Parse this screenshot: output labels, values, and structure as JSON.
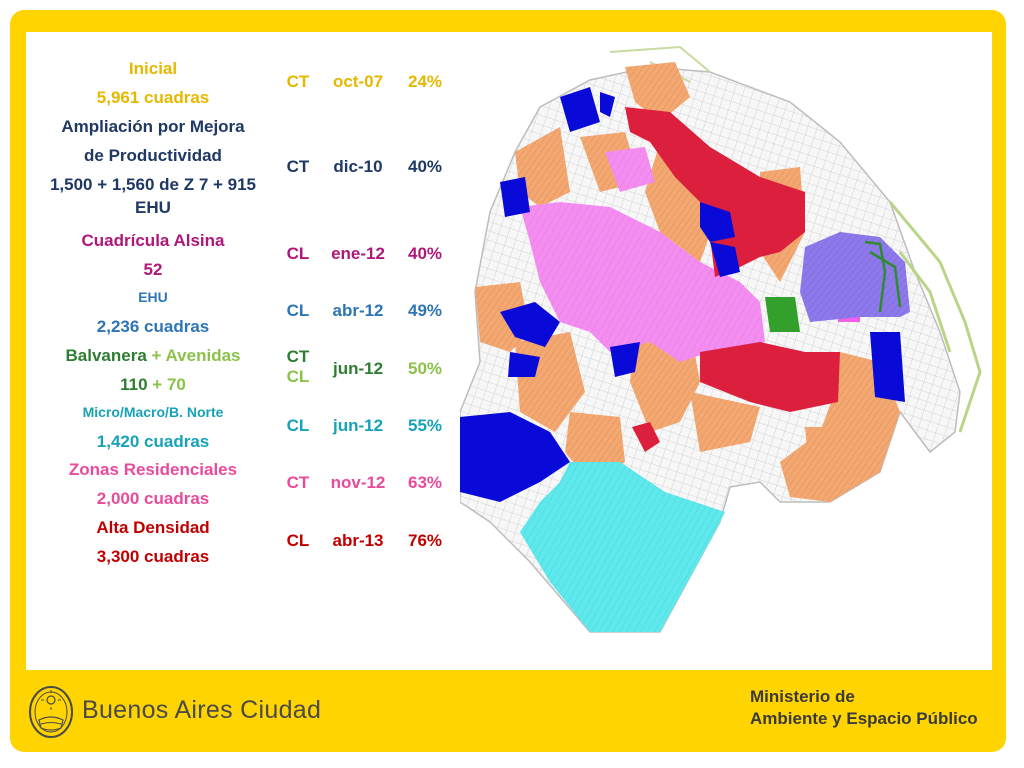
{
  "colors": {
    "frame": "#ffd400",
    "gold": "#e6b800",
    "navy": "#1f3864",
    "magenta": "#b0177a",
    "blue": "#2e75b6",
    "green": "#2e7d32",
    "lime": "#8bc34a",
    "teal": "#17a2b8",
    "pink": "#e84b9c",
    "red": "#c00000"
  },
  "rows": [
    {
      "lines": [
        "Inicial",
        "5,961 cuadras"
      ],
      "code": "CT",
      "date": "oct-07",
      "pct": "24%",
      "color": "#e6b800"
    },
    {
      "lines": [
        "Ampliación por Mejora",
        "de Productividad",
        "1,500 + 1,560 de Z 7 + 915",
        "EHU"
      ],
      "code": "CT",
      "date": "dic-10",
      "pct": "40%",
      "color": "#1f3864"
    },
    {
      "lines": [
        "Cuadrícula Alsina",
        "52"
      ],
      "code": "CL",
      "date": "ene-12",
      "pct": "40%",
      "color": "#b0177a"
    },
    {
      "lines": [
        "EHU",
        "2,236 cuadras"
      ],
      "code": "CL",
      "date": "abr-12",
      "pct": "49%",
      "color": "#2e75b6"
    },
    {
      "lines": [
        "Balvanera",
        "+ Avenidas",
        "110",
        "+ 70"
      ],
      "code": "CT",
      "code2": "CL",
      "date": "jun-12",
      "pct": "50%",
      "color": "#2e7d32"
    },
    {
      "lines": [
        "Micro/Macro/B. Norte",
        "1,420 cuadras"
      ],
      "code": "CL",
      "date": "jun-12",
      "pct": "55%",
      "color": "#17a2b8"
    },
    {
      "lines": [
        "Zonas Residenciales",
        "2,000 cuadras"
      ],
      "code": "CT",
      "date": "nov-12",
      "pct": "63%",
      "color": "#e84b9c"
    },
    {
      "lines": [
        "Alta Densidad",
        "3,300 cuadras"
      ],
      "code": "CL",
      "date": "abr-13",
      "pct": "76%",
      "color": "#c00000"
    }
  ],
  "footer": {
    "brand": "Buenos Aires Ciudad",
    "ministry_line1": "Ministerio de",
    "ministry_line2": "Ambiente y Espacio Público",
    "seal_icon": "city-seal-icon"
  }
}
